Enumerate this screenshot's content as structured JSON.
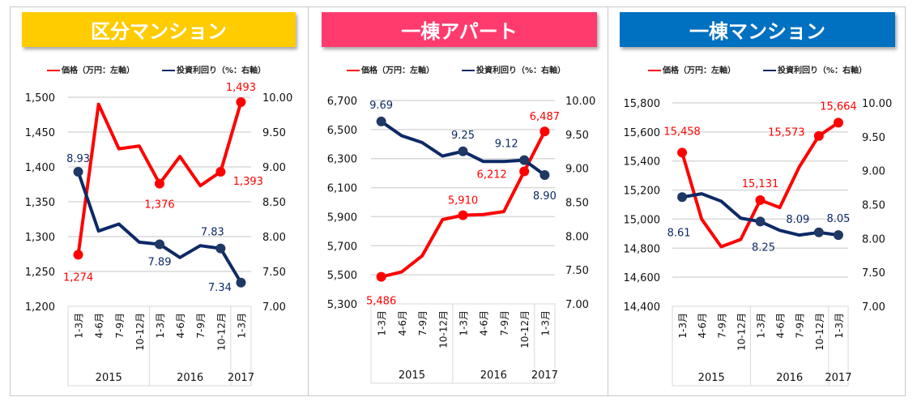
{
  "legend": {
    "price": "価格（万円：左軸）",
    "yield": "投資利回り（%：右軸）"
  },
  "colors": {
    "price": "#FF0000",
    "yield": "#0D2A66",
    "banner1": "#FFCC00",
    "banner2": "#FF3B6E",
    "banner3": "#0070C0"
  },
  "chart_data": [
    {
      "type": "line",
      "title": "区分マンション",
      "categories": [
        "1-3月",
        "4-6月",
        "7-9月",
        "10-12月",
        "1-3月",
        "4-6月",
        "7-9月",
        "10-12月",
        "1-3月"
      ],
      "years": [
        "2015",
        "2016",
        "2017"
      ],
      "y_left_ticks": [
        "1,200",
        "1,250",
        "1,300",
        "1,350",
        "1,400",
        "1,450",
        "1,500"
      ],
      "ylim_left": [
        1200,
        1500
      ],
      "y_right_ticks": [
        "7.00",
        "7.50",
        "8.00",
        "8.50",
        "9.00",
        "9.50",
        "10.00"
      ],
      "ylim_right": [
        7,
        10
      ],
      "grid": true,
      "legend_position": "top",
      "series": [
        {
          "name": "価格（万円：左軸）",
          "axis": "left",
          "values": [
            1274,
            1490,
            1426,
            1430,
            1376,
            1415,
            1373,
            1393,
            1493
          ],
          "labels": {
            "0": "1,274",
            "4": "1,376",
            "7": "1,393",
            "8": "1,493"
          }
        },
        {
          "name": "投資利回り（%：右軸）",
          "axis": "right",
          "values": [
            8.93,
            8.08,
            8.18,
            7.92,
            7.89,
            7.7,
            7.87,
            7.83,
            7.34
          ],
          "labels": {
            "0": "8.93",
            "4": "7.89",
            "7": "7.83",
            "8": "7.34"
          }
        }
      ]
    },
    {
      "type": "line",
      "title": "一棟アパート",
      "categories": [
        "1-3月",
        "4-6月",
        "7-9月",
        "10-12月",
        "1-3月",
        "4-6月",
        "7-9月",
        "10-12月",
        "1-3月"
      ],
      "years": [
        "2015",
        "2016",
        "2017"
      ],
      "y_left_ticks": [
        "5,300",
        "5,500",
        "5,700",
        "5,900",
        "6,100",
        "6,300",
        "6,500",
        "6,700"
      ],
      "ylim_left": [
        5300,
        6700
      ],
      "y_right_ticks": [
        "7.00",
        "7.50",
        "8.00",
        "8.50",
        "9.00",
        "9.50",
        "10.00"
      ],
      "ylim_right": [
        7,
        10
      ],
      "grid": true,
      "legend_position": "top",
      "series": [
        {
          "name": "価格（万円：左軸）",
          "axis": "left",
          "values": [
            5486,
            5520,
            5630,
            5880,
            5910,
            5915,
            5935,
            6212,
            6487
          ],
          "labels": {
            "0": "5,486",
            "4": "5,910",
            "7": "6,212",
            "8": "6,487"
          }
        },
        {
          "name": "投資利回り（%：右軸）",
          "axis": "right",
          "values": [
            9.69,
            9.48,
            9.38,
            9.18,
            9.25,
            9.1,
            9.1,
            9.12,
            8.9
          ],
          "labels": {
            "0": "9.69",
            "4": "9.25",
            "7": "9.12",
            "8": "8.90"
          }
        }
      ]
    },
    {
      "type": "line",
      "title": "一棟マンション",
      "categories": [
        "1-3月",
        "4-6月",
        "7-9月",
        "10-12月",
        "1-3月",
        "4-6月",
        "7-9月",
        "10-12月",
        "1-3月"
      ],
      "years": [
        "2015",
        "2016",
        "2017"
      ],
      "y_left_ticks": [
        "14,400",
        "14,600",
        "14,800",
        "15,000",
        "15,200",
        "15,400",
        "15,600",
        "15,800"
      ],
      "ylim_left": [
        14400,
        15800
      ],
      "y_right_ticks": [
        "7.00",
        "7.50",
        "8.00",
        "8.50",
        "9.00",
        "9.50",
        "10.00"
      ],
      "ylim_right": [
        7,
        10
      ],
      "grid": true,
      "legend_position": "top",
      "series": [
        {
          "name": "価格（万円：左軸）",
          "axis": "left",
          "values": [
            15458,
            15000,
            14810,
            14860,
            15131,
            15080,
            15360,
            15573,
            15664
          ],
          "labels": {
            "0": "15,458",
            "4": "15,131",
            "7": "15,573",
            "8": "15,664"
          }
        },
        {
          "name": "投資利回り（%：右軸）",
          "axis": "right",
          "values": [
            8.61,
            8.66,
            8.55,
            8.3,
            8.25,
            8.12,
            8.05,
            8.09,
            8.05
          ],
          "labels": {
            "0": "8.61",
            "4": "8.25",
            "7": "8.09",
            "8": "8.05"
          }
        }
      ]
    }
  ]
}
